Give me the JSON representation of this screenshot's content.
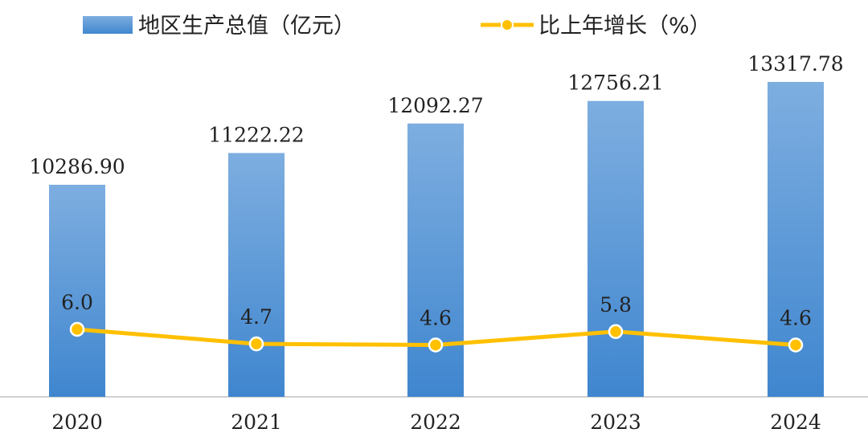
{
  "chart_data": {
    "type": "bar",
    "categories": [
      "2020",
      "2021",
      "2022",
      "2023",
      "2024"
    ],
    "series": [
      {
        "name": "地区生产总值（亿元）",
        "type": "bar",
        "values": [
          10286.9,
          11222.22,
          12092.27,
          12756.21,
          13317.78
        ],
        "labels": [
          "10286.90",
          "11222.22",
          "12092.27",
          "12756.21",
          "13317.78"
        ],
        "color": "#5b9bd5"
      },
      {
        "name": "比上年增长（%）",
        "type": "line",
        "values": [
          6.0,
          4.7,
          4.6,
          5.8,
          4.6
        ],
        "labels": [
          "6.0",
          "4.7",
          "4.6",
          "5.8",
          "4.6"
        ],
        "color": "#ffc000"
      }
    ],
    "legend": "top",
    "grid": false
  }
}
